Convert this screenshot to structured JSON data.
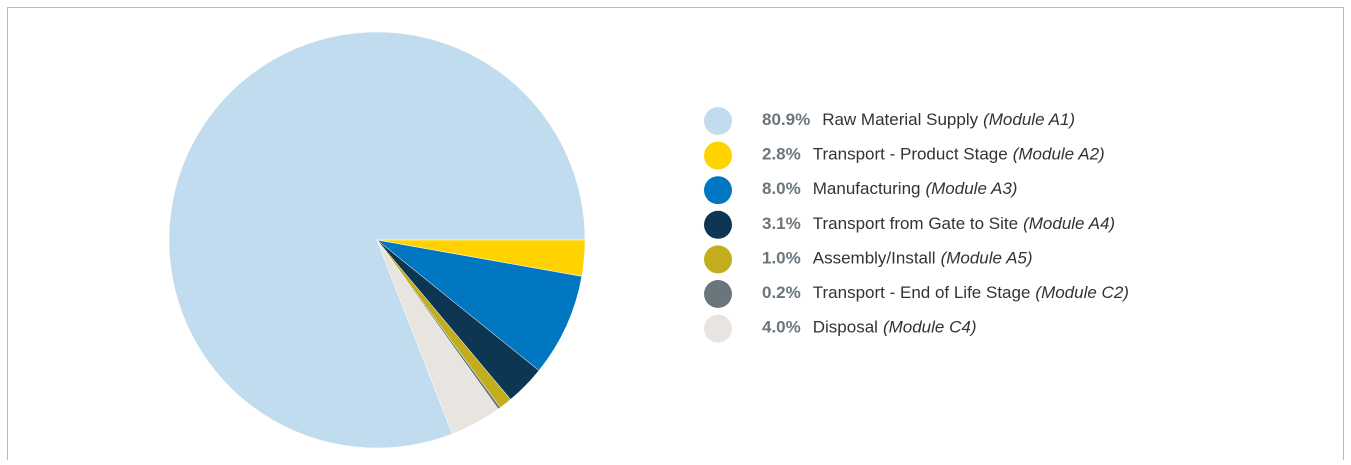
{
  "chart_data": {
    "type": "pie",
    "categories": [
      "Raw Material Supply",
      "Transport - Product Stage",
      "Manufacturing",
      "Transport from Gate to Site",
      "Assembly/Install",
      "Transport - End of Life Stage",
      "Disposal"
    ],
    "modules": [
      "(Module A1)",
      "(Module A2)",
      "(Module A3)",
      "(Module A4)",
      "(Module A5)",
      "(Module C2)",
      "(Module C4)"
    ],
    "values": [
      80.9,
      2.8,
      8.0,
      3.1,
      1.0,
      0.2,
      4.0
    ],
    "value_labels": [
      "80.9%",
      "2.8%",
      "8.0%",
      "3.1%",
      "1.0%",
      "0.2%",
      "4.0%"
    ],
    "colors": [
      "#c0dcee",
      "#ffd200",
      "#0077c0",
      "#0c3651",
      "#c2ad1e",
      "#6b767c",
      "#e8e5e1"
    ]
  }
}
